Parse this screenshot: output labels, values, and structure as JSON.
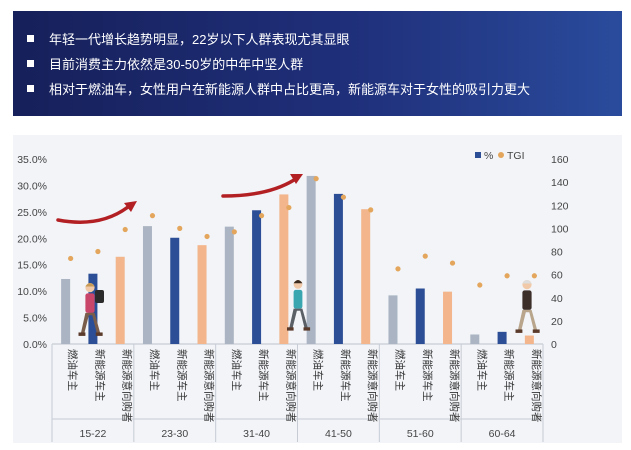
{
  "banner": {
    "lines": [
      "年轻一代增长趋势明显，22岁以下人群表现尤其显眼",
      "目前消费主力依然是30-50岁的中年中坚人群",
      "相对于燃油车，女性用户在新能源人群中占比更高，新能源车对于女性的吸引力更大"
    ]
  },
  "chart_data": {
    "type": "bar",
    "title": "",
    "groups": [
      "15-22",
      "23-30",
      "31-40",
      "41-50",
      "51-60",
      "60-64"
    ],
    "subcategories": [
      "燃油车主",
      "新能源车主",
      "新能源意向购者"
    ],
    "series": [
      {
        "name": "%",
        "axis": "left",
        "values": [
          12.3,
          13.3,
          16.5,
          22.3,
          20.1,
          18.7,
          22.2,
          25.3,
          28.3,
          31.8,
          28.4,
          25.5,
          9.2,
          10.5,
          9.9,
          1.8,
          2.3,
          1.6
        ]
      },
      {
        "name": "TGI",
        "axis": "right",
        "type": "scatter",
        "values": [
          74,
          80,
          99,
          111,
          100,
          93,
          97,
          111,
          118,
          143,
          127,
          116,
          65,
          76,
          70,
          51,
          59,
          59
        ]
      }
    ],
    "bar_colors": [
      "#aab4c2",
      "#2c4e96",
      "#f3b58b"
    ],
    "legend": [
      {
        "label": "%",
        "color": "#2c4e96"
      },
      {
        "label": "TGI",
        "color": "#e3a65c"
      }
    ],
    "legend_position": "top-right",
    "y_left": {
      "lim": [
        0,
        35
      ],
      "ticks": [
        "0.0%",
        "5.0%",
        "10.0%",
        "15.0%",
        "20.0%",
        "25.0%",
        "30.0%",
        "35.0%"
      ]
    },
    "y_right": {
      "lim": [
        0,
        160
      ],
      "ticks": [
        "0",
        "20",
        "40",
        "60",
        "80",
        "100",
        "120",
        "140",
        "160"
      ]
    },
    "grid": false,
    "decorations": [
      "red-trend-arrow",
      "red-trend-arrow",
      "person-woman-backpack-icon",
      "person-young-man-icon",
      "person-elderly-man-icon"
    ]
  }
}
